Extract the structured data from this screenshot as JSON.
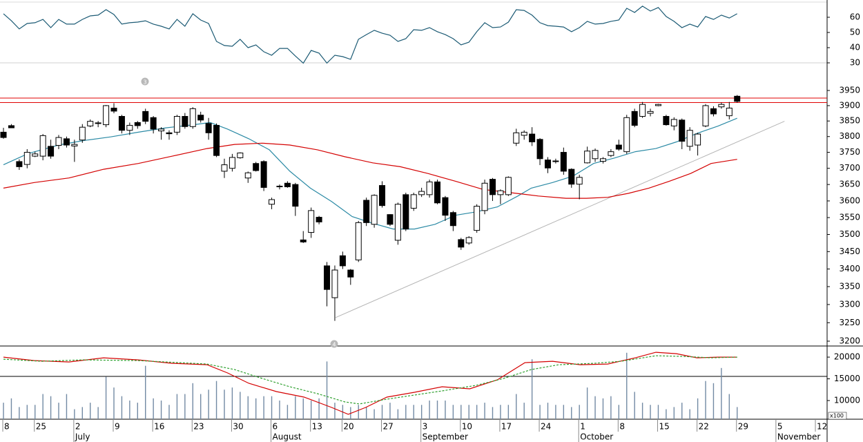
{
  "chart_data": [
    {
      "type": "line",
      "x": [
        0,
        1,
        2,
        3,
        4,
        5,
        6,
        7,
        8,
        9,
        10,
        11,
        12,
        13,
        14,
        15,
        16,
        17,
        18,
        19,
        20,
        21,
        22,
        23,
        24,
        25,
        26,
        27,
        28,
        29,
        30,
        31,
        32,
        33,
        34,
        35,
        36,
        37,
        38,
        39,
        40,
        41,
        42,
        43,
        44,
        45,
        46,
        47,
        48,
        49,
        50,
        51,
        52,
        53,
        54,
        55,
        56,
        57,
        58,
        59,
        60,
        61,
        62,
        63,
        64,
        65,
        66,
        67,
        68,
        69,
        70,
        71,
        72,
        73,
        74,
        75,
        76,
        77,
        78,
        79,
        80,
        81,
        82,
        83,
        84,
        85,
        86,
        87,
        88,
        89,
        90,
        91,
        92,
        93
      ],
      "series": [
        {
          "color": "#1b5a74",
          "values": [
            62.3,
            57.7,
            52.3,
            55.9,
            56.4,
            58.6,
            53.2,
            58.6,
            55.5,
            55.5,
            58.6,
            60.9,
            61.4,
            65.0,
            61.8,
            55.5,
            56.4,
            56.8,
            57.7,
            55.5,
            54.1,
            52.3,
            58.6,
            54.1,
            62.3,
            58.2,
            55.9,
            44.1,
            41.4,
            40.9,
            45.5,
            40.0,
            41.8,
            37.3,
            35.0,
            39.5,
            39.5,
            34.5,
            29.8,
            38.2,
            36.4,
            29.8,
            35.0,
            34.1,
            32.3,
            45.5,
            48.6,
            51.4,
            49.5,
            48.2,
            44.1,
            45.9,
            51.8,
            51.4,
            53.2,
            50.5,
            48.6,
            45.9,
            41.8,
            43.6,
            50.5,
            56.4,
            53.2,
            53.6,
            56.8,
            65.0,
            64.5,
            61.4,
            56.4,
            54.5,
            54.1,
            53.6,
            50.5,
            53.2,
            57.3,
            55.5,
            55.9,
            57.3,
            58.2,
            65.9,
            63.2,
            67.3,
            64.1,
            66.4,
            60.5,
            57.3,
            53.2,
            55.5,
            53.6,
            60.5,
            58.6,
            61.4,
            59.5,
            62.3
          ]
        }
      ],
      "xlim": [
        -0.44,
        104.4
      ],
      "ylim": [
        30,
        70
      ],
      "yticks": [
        30,
        40,
        50,
        60
      ]
    },
    {
      "type": "candlestick",
      "x": [
        0,
        1,
        2,
        3,
        4,
        5,
        6,
        7,
        8,
        9,
        10,
        11,
        12,
        13,
        14,
        15,
        16,
        17,
        18,
        19,
        20,
        21,
        22,
        23,
        24,
        25,
        26,
        27,
        28,
        29,
        30,
        31,
        32,
        33,
        34,
        35,
        36,
        37,
        38,
        39,
        40,
        41,
        42,
        43,
        44,
        45,
        46,
        47,
        48,
        49,
        50,
        51,
        52,
        53,
        54,
        55,
        56,
        57,
        58,
        59,
        60,
        61,
        62,
        63,
        64,
        65,
        66,
        67,
        68,
        69,
        70,
        71,
        72,
        73,
        74,
        75,
        76,
        77,
        78,
        79,
        80,
        81,
        82,
        83,
        84,
        85,
        86,
        87,
        88,
        89,
        90,
        91,
        92,
        93
      ],
      "open": [
        3814,
        3835,
        3721,
        3712,
        3738,
        3738,
        3769,
        3772,
        3793,
        3770,
        3789,
        3834,
        3842,
        3838,
        3892,
        3865,
        3820,
        3845,
        3881,
        3861,
        3818,
        3812,
        3814,
        3865,
        3832,
        3869,
        3842,
        3836,
        3691,
        3700,
        3733,
        3670,
        3715,
        3721,
        3590,
        3645,
        3654,
        3650,
        3484,
        3506,
        3551,
        3409,
        3319,
        3438,
        3397,
        3426,
        3602,
        3530,
        3647,
        3559,
        3483,
        3619,
        3578,
        3619,
        3619,
        3658,
        3610,
        3565,
        3485,
        3475,
        3512,
        3571,
        3666,
        3619,
        3619,
        3779,
        3804,
        3808,
        3791,
        3726,
        3723,
        3750,
        3697,
        3651,
        3717,
        3730,
        3722,
        3740,
        3773,
        3752,
        3881,
        3865,
        3875,
        3900,
        3865,
        3834,
        3853,
        3769,
        3773,
        3834,
        3890,
        3896,
        3867,
        3931
      ],
      "high": [
        3828,
        3840,
        3728,
        3760,
        3752,
        3808,
        3790,
        3805,
        3800,
        3790,
        3840,
        3855,
        3850,
        3902,
        3908,
        3870,
        3845,
        3850,
        3890,
        3866,
        3830,
        3820,
        3870,
        3876,
        3895,
        3880,
        3860,
        3842,
        3730,
        3745,
        3750,
        3690,
        3720,
        3725,
        3610,
        3650,
        3660,
        3655,
        3510,
        3580,
        3555,
        3420,
        3410,
        3450,
        3400,
        3540,
        3610,
        3620,
        3660,
        3560,
        3595,
        3625,
        3625,
        3640,
        3665,
        3665,
        3615,
        3570,
        3490,
        3495,
        3590,
        3665,
        3670,
        3635,
        3675,
        3825,
        3820,
        3830,
        3795,
        3735,
        3730,
        3765,
        3700,
        3680,
        3768,
        3762,
        3735,
        3760,
        3790,
        3870,
        3890,
        3912,
        3890,
        3906,
        3870,
        3862,
        3858,
        3830,
        3812,
        3905,
        3898,
        3910,
        3912,
        3935
      ],
      "low": [
        3793,
        3830,
        3695,
        3700,
        3735,
        3725,
        3730,
        3760,
        3765,
        3720,
        3780,
        3830,
        3830,
        3830,
        3875,
        3810,
        3805,
        3825,
        3840,
        3810,
        3790,
        3790,
        3805,
        3825,
        3825,
        3845,
        3790,
        3735,
        3670,
        3690,
        3730,
        3655,
        3690,
        3630,
        3575,
        3635,
        3640,
        3555,
        3475,
        3490,
        3530,
        3295,
        3255,
        3400,
        3355,
        3420,
        3525,
        3520,
        3580,
        3525,
        3470,
        3510,
        3570,
        3612,
        3610,
        3590,
        3540,
        3510,
        3455,
        3470,
        3505,
        3560,
        3600,
        3590,
        3615,
        3770,
        3790,
        3770,
        3710,
        3685,
        3715,
        3680,
        3640,
        3605,
        3715,
        3720,
        3715,
        3735,
        3755,
        3745,
        3830,
        3860,
        3865,
        3898,
        3835,
        3820,
        3760,
        3755,
        3740,
        3830,
        3865,
        3890,
        3855,
        3910
      ],
      "close": [
        3797,
        3828,
        3705,
        3750,
        3745,
        3803,
        3738,
        3797,
        3773,
        3775,
        3830,
        3849,
        3844,
        3900,
        3882,
        3820,
        3836,
        3835,
        3849,
        3824,
        3824,
        3809,
        3865,
        3832,
        3890,
        3853,
        3812,
        3740,
        3711,
        3734,
        3748,
        3686,
        3693,
        3641,
        3604,
        3643,
        3643,
        3584,
        3478,
        3571,
        3537,
        3342,
        3397,
        3409,
        3377,
        3535,
        3535,
        3617,
        3586,
        3530,
        3590,
        3516,
        3619,
        3629,
        3658,
        3594,
        3557,
        3526,
        3463,
        3491,
        3584,
        3654,
        3619,
        3631,
        3672,
        3812,
        3814,
        3783,
        3730,
        3701,
        3721,
        3691,
        3651,
        3672,
        3754,
        3756,
        3730,
        3752,
        3760,
        3861,
        3836,
        3904,
        3881,
        3904,
        3838,
        3855,
        3785,
        3820,
        3808,
        3900,
        3873,
        3904,
        3892,
        3914
      ],
      "up_color": "#ffffff",
      "down_color": "#000000",
      "log_scale": true,
      "xlim": [
        -0.44,
        104.4
      ],
      "ylim": [
        3187,
        4031
      ],
      "yticks": [
        3200,
        3250,
        3300,
        3350,
        3400,
        3450,
        3500,
        3550,
        3600,
        3650,
        3700,
        3750,
        3800,
        3850,
        3900,
        3950
      ],
      "lines": [
        {
          "color": "#2b8aa5",
          "x": [
            0,
            3.1,
            7.0,
            10.1,
            13.6,
            17.1,
            20.6,
            24.1,
            26.2,
            28.4,
            31.1,
            33.7,
            36.3,
            38.9,
            41.6,
            44.2,
            46.8,
            49.4,
            52.1,
            54.7,
            57.3,
            59.9,
            62.6,
            65.2,
            66.9,
            69.6,
            72.2,
            74.8,
            77.4,
            80.1,
            82.7,
            85.3,
            87.9,
            90.6,
            93.0
          ],
          "values": [
            3711,
            3746,
            3773,
            3787,
            3799,
            3814,
            3828,
            3838,
            3845,
            3824,
            3793,
            3758,
            3691,
            3639,
            3598,
            3553,
            3533,
            3516,
            3516,
            3530,
            3557,
            3567,
            3582,
            3615,
            3639,
            3656,
            3676,
            3715,
            3732,
            3752,
            3762,
            3783,
            3810,
            3834,
            3859
          ]
        },
        {
          "color": "#d40000",
          "x": [
            0,
            3.9,
            8.3,
            12.7,
            17.1,
            21.4,
            25.8,
            29.3,
            32.8,
            36.3,
            39.8,
            43.3,
            46.8,
            50.3,
            53.8,
            57.3,
            60.8,
            64.3,
            67.8,
            71.3,
            73.9,
            76.6,
            79.2,
            81.8,
            84.4,
            87.1,
            89.7,
            93.0
          ],
          "values": [
            3639,
            3656,
            3670,
            3697,
            3715,
            3738,
            3762,
            3775,
            3779,
            3773,
            3758,
            3736,
            3717,
            3705,
            3684,
            3660,
            3635,
            3625,
            3615,
            3608,
            3608,
            3611,
            3623,
            3639,
            3660,
            3684,
            3715,
            3728
          ]
        }
      ],
      "trendline": {
        "color": "#b4b4b4",
        "x": [
          42.1,
          99.0
        ],
        "values": [
          3264,
          3849
        ]
      },
      "hlines": {
        "color": "#e00000",
        "values": [
          3925,
          3910
        ]
      },
      "annotations": [
        "3",
        "4"
      ]
    },
    {
      "type": "bar",
      "x": [
        0,
        1,
        2,
        3,
        4,
        5,
        6,
        7,
        8,
        9,
        10,
        11,
        12,
        13,
        14,
        15,
        16,
        17,
        18,
        19,
        20,
        21,
        22,
        23,
        24,
        25,
        26,
        27,
        28,
        29,
        30,
        31,
        32,
        33,
        34,
        35,
        36,
        37,
        38,
        39,
        40,
        41,
        42,
        43,
        44,
        45,
        46,
        47,
        48,
        49,
        50,
        51,
        52,
        53,
        54,
        55,
        56,
        57,
        58,
        59,
        60,
        61,
        62,
        63,
        64,
        65,
        66,
        67,
        68,
        69,
        70,
        71,
        72,
        73,
        74,
        75,
        76,
        77,
        78,
        79,
        80,
        81,
        82,
        83,
        84,
        85,
        86,
        87,
        88,
        89,
        90,
        91,
        92,
        93
      ],
      "values": [
        9500,
        10500,
        8500,
        9000,
        9000,
        11500,
        11000,
        9500,
        11500,
        8000,
        8500,
        9500,
        8500,
        15500,
        13000,
        11000,
        10000,
        9500,
        18000,
        10500,
        10000,
        9000,
        11500,
        11500,
        14000,
        11500,
        12500,
        14500,
        12500,
        13000,
        12000,
        11000,
        10500,
        11000,
        11000,
        10000,
        9000,
        11000,
        10500,
        10000,
        10500,
        19000,
        9500,
        9000,
        8500,
        9000,
        8500,
        8000,
        9000,
        9500,
        8000,
        9000,
        9000,
        9000,
        10000,
        10000,
        10000,
        9000,
        9000,
        9000,
        9000,
        9500,
        8500,
        9000,
        9000,
        11500,
        9500,
        19500,
        9000,
        9500,
        9000,
        9000,
        8500,
        9000,
        13000,
        11000,
        10500,
        11000,
        9000,
        21000,
        12000,
        9500,
        9000,
        9000,
        8000,
        8500,
        9500,
        8000,
        10500,
        14500,
        14000,
        17500,
        11500,
        8500
      ],
      "color": "#7189a3",
      "series": [
        {
          "color": "#d40000",
          "dashed": false,
          "x": [
            0,
            3.9,
            8.3,
            12.7,
            17.1,
            21.4,
            25.8,
            28.4,
            31.1,
            34.6,
            38.1,
            41.6,
            43.7,
            45.9,
            48.6,
            52.1,
            55.6,
            59.1,
            62.6,
            66.1,
            69.6,
            73.1,
            76.6,
            80.1,
            82.7,
            85.3,
            87.9,
            90.6,
            93
          ],
          "values": [
            20000,
            19205,
            18890,
            19840,
            19360,
            18570,
            18250,
            16350,
            13970,
            12060,
            10790,
            8410,
            6830,
            8410,
            10790,
            11900,
            13170,
            12700,
            14760,
            18730,
            19050,
            18250,
            18410,
            19840,
            21110,
            20790,
            19840,
            20000,
            20000
          ]
        },
        {
          "color": "#2fa02f",
          "dashed": true,
          "x": [
            0,
            4.8,
            10.1,
            17.1,
            22.3,
            25.8,
            29.3,
            32.8,
            36.3,
            39.8,
            43.3,
            45.1,
            48.6,
            52.1,
            55.6,
            59.9,
            63.4,
            66.9,
            70.4,
            74.8,
            78.3,
            82.7,
            86.2,
            89.7,
            93
          ],
          "values": [
            19520,
            19050,
            19360,
            19205,
            18730,
            18410,
            17140,
            15080,
            13170,
            11590,
            9680,
            9210,
            10320,
            11270,
            12220,
            13490,
            15080,
            17140,
            18250,
            18570,
            19050,
            20320,
            20160,
            19840,
            20000
          ]
        }
      ],
      "xlim": [
        -0.44,
        104.4
      ],
      "ylim": [
        5700,
        22400
      ],
      "yticks": [
        10000,
        15000,
        20000
      ],
      "unit_label": "x100",
      "xticks": [
        {
          "value": 0,
          "label": "8"
        },
        {
          "value": 4,
          "label": "25"
        },
        {
          "value": 9,
          "label": "2"
        },
        {
          "value": 14,
          "label": "9"
        },
        {
          "value": 19,
          "label": "16"
        },
        {
          "value": 24,
          "label": "23"
        },
        {
          "value": 29,
          "label": "30"
        },
        {
          "value": 34,
          "label": "6"
        },
        {
          "value": 39,
          "label": "13"
        },
        {
          "value": 43,
          "label": "20"
        },
        {
          "value": 48,
          "label": "27"
        },
        {
          "value": 53,
          "label": "3"
        },
        {
          "value": 58,
          "label": "10"
        },
        {
          "value": 63,
          "label": "17"
        },
        {
          "value": 68,
          "label": "24"
        },
        {
          "value": 73,
          "label": "1"
        },
        {
          "value": 78,
          "label": "8"
        },
        {
          "value": 83,
          "label": "15"
        },
        {
          "value": 88,
          "label": "22"
        },
        {
          "value": 93,
          "label": "29"
        },
        {
          "value": 98,
          "label": "5"
        },
        {
          "value": 103,
          "label": "12"
        }
      ],
      "month_ticks": [
        {
          "value": 9,
          "label": "July"
        },
        {
          "value": 34,
          "label": "August"
        },
        {
          "value": 53,
          "label": "September"
        },
        {
          "value": 73,
          "label": "October"
        },
        {
          "value": 98,
          "label": "November"
        }
      ]
    }
  ]
}
